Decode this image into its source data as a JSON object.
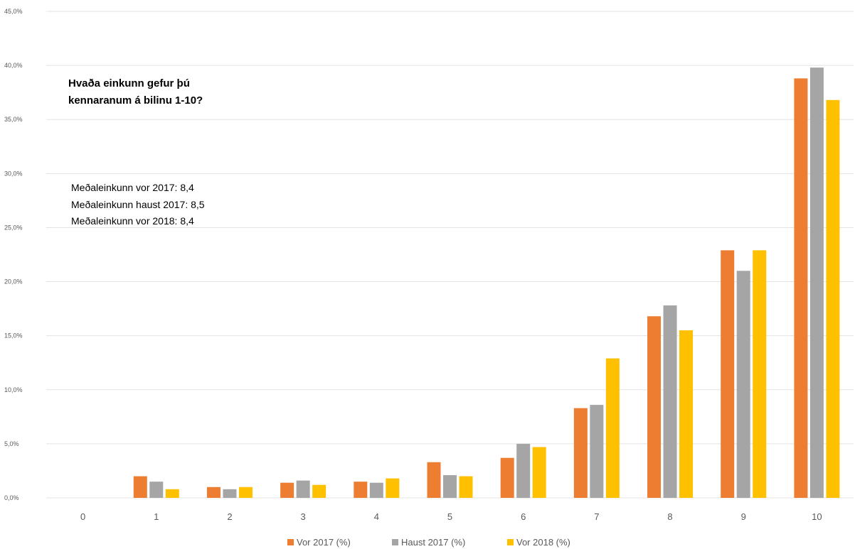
{
  "chart_data": {
    "type": "bar",
    "title": "",
    "xlabel": "",
    "ylabel": "",
    "categories": [
      "0",
      "1",
      "2",
      "3",
      "4",
      "5",
      "6",
      "7",
      "8",
      "9",
      "10"
    ],
    "ylim": [
      0,
      45
    ],
    "yticks": [
      "0,0%",
      "5,0%",
      "10,0%",
      "15,0%",
      "20,0%",
      "25,0%",
      "30,0%",
      "35,0%",
      "40,0%",
      "45,0%"
    ],
    "grid": true,
    "legend_position": "bottom",
    "series": [
      {
        "name": "Vor 2017 (%)",
        "color": "#ED7D31",
        "values": [
          0,
          2.0,
          1.0,
          1.4,
          1.5,
          3.3,
          3.7,
          8.3,
          16.8,
          22.9,
          38.8
        ]
      },
      {
        "name": "Haust 2017 (%)",
        "color": "#A5A5A5",
        "values": [
          0,
          1.5,
          0.8,
          1.6,
          1.4,
          2.1,
          5.0,
          8.6,
          17.8,
          21.0,
          39.8
        ]
      },
      {
        "name": "Vor 2018 (%)",
        "color": "#FFC000",
        "values": [
          0,
          0.8,
          1.0,
          1.2,
          1.8,
          2.0,
          4.7,
          12.9,
          15.5,
          22.9,
          36.8
        ]
      }
    ]
  },
  "annotation": {
    "question_line1": "Hvaða einkunn gefur þú",
    "question_line2": "kennaranum á bilinu 1-10?",
    "averages": [
      "Meðaleinkunn vor 2017: 8,4",
      "Meðaleinkunn haust 2017: 8,5",
      "Meðaleinkunn vor 2018: 8,4"
    ]
  }
}
